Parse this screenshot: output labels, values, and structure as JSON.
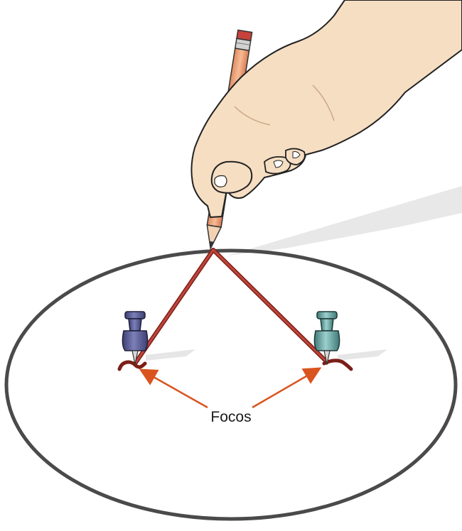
{
  "diagram": {
    "focus_label": "Focos",
    "colors": {
      "ellipse_stroke": "#4a4a4a",
      "string": "#b5372c",
      "arrow": "#d9541e",
      "pencil_body": "#f0a57e",
      "skin": "#f5dcc0",
      "pin_left": "#55588f",
      "pin_right": "#5b9a98",
      "shadow": "#e6e6e6"
    },
    "icons": [
      "hand",
      "pencil",
      "push-pin-left",
      "push-pin-right",
      "string",
      "ellipse",
      "arrow"
    ]
  }
}
